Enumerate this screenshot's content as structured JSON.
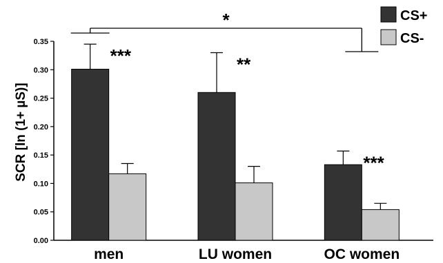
{
  "chart_data": {
    "type": "bar",
    "title": "",
    "xlabel": "",
    "ylabel": "SCR [ln (1+ µS)]",
    "ylim": [
      0,
      0.35
    ],
    "yticks": [
      "0.00",
      "0.05",
      "0.10",
      "0.15",
      "0.20",
      "0.25",
      "0.30",
      "0.35"
    ],
    "categories": [
      "men",
      "LU women",
      "OC women"
    ],
    "series": [
      {
        "name": "CS+",
        "color": "#333333",
        "values": [
          0.301,
          0.26,
          0.133
        ],
        "errors": [
          0.044,
          0.07,
          0.024
        ]
      },
      {
        "name": "CS-",
        "color": "#c8c8c8",
        "values": [
          0.117,
          0.101,
          0.054
        ],
        "errors": [
          0.018,
          0.029,
          0.011
        ]
      }
    ],
    "annotations": {
      "within_group": [
        "***",
        "**",
        "***"
      ],
      "between_groups": {
        "from": "men",
        "to": "OC women",
        "label": "*"
      }
    },
    "legend": {
      "position": "top-right"
    },
    "grid": false
  }
}
